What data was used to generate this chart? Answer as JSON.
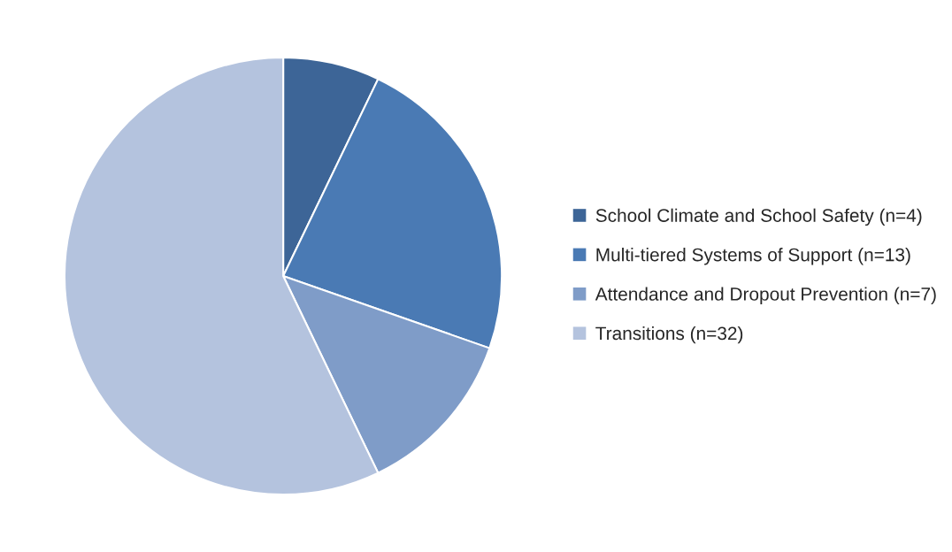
{
  "chart_data": {
    "type": "pie",
    "categories": [
      "School Climate and School Safety (n=4)",
      "Multi-tiered Systems of Support (n=13)",
      "Attendance and Dropout Prevention (n=7)",
      "Transitions (n=32)"
    ],
    "values": [
      4,
      13,
      7,
      32
    ],
    "colors": [
      "#3d6597",
      "#4a7ab4",
      "#7f9cc8",
      "#b4c3de"
    ],
    "legend": "right"
  }
}
